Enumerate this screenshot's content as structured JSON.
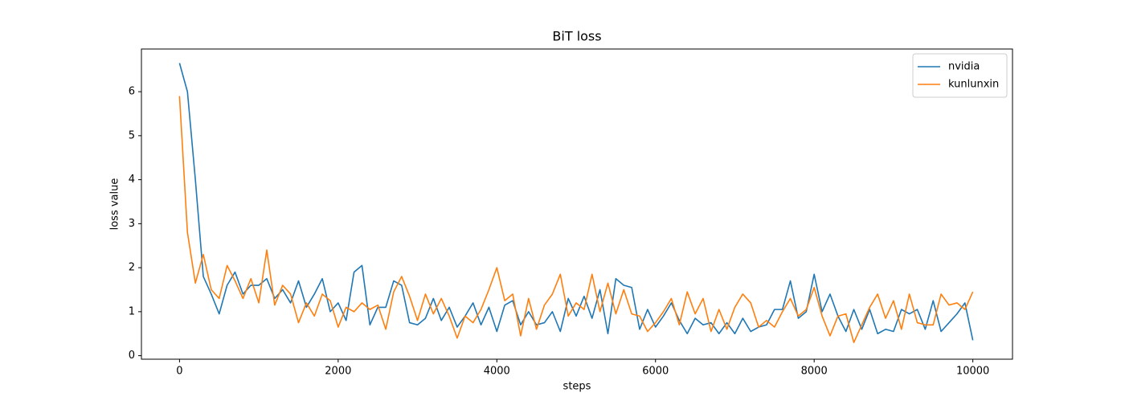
{
  "chart_data": {
    "type": "line",
    "title": "BiT loss",
    "x_label": "steps",
    "y_label": "loss value",
    "x": [
      0,
      100,
      200,
      300,
      400,
      500,
      600,
      700,
      800,
      900,
      1000,
      1100,
      1200,
      1300,
      1400,
      1500,
      1600,
      1700,
      1800,
      1900,
      2000,
      2100,
      2200,
      2300,
      2400,
      2500,
      2600,
      2700,
      2800,
      2900,
      3000,
      3100,
      3200,
      3300,
      3400,
      3500,
      3600,
      3700,
      3800,
      3900,
      4000,
      4100,
      4200,
      4300,
      4400,
      4500,
      4600,
      4700,
      4800,
      4900,
      5000,
      5100,
      5200,
      5300,
      5400,
      5500,
      5600,
      5700,
      5800,
      5900,
      6000,
      6100,
      6200,
      6300,
      6400,
      6500,
      6600,
      6700,
      6800,
      6900,
      7000,
      7100,
      7200,
      7300,
      7400,
      7500,
      7600,
      7700,
      7800,
      7900,
      8000,
      8100,
      8200,
      8300,
      8400,
      8500,
      8600,
      8700,
      8800,
      8900,
      9000,
      9100,
      9200,
      9300,
      9400,
      9500,
      9600,
      9700,
      9800,
      9900,
      10000
    ],
    "series": [
      {
        "name": "nvidia",
        "color": "#1f77b4",
        "values": [
          6.65,
          6.0,
          4.0,
          1.8,
          1.4,
          0.95,
          1.6,
          1.9,
          1.4,
          1.6,
          1.6,
          1.75,
          1.3,
          1.5,
          1.2,
          1.7,
          1.1,
          1.4,
          1.75,
          1.0,
          1.2,
          0.8,
          1.9,
          2.05,
          0.7,
          1.1,
          1.1,
          1.7,
          1.6,
          0.75,
          0.7,
          0.85,
          1.3,
          0.8,
          1.1,
          0.65,
          0.9,
          1.2,
          0.7,
          1.1,
          0.55,
          1.15,
          1.25,
          0.7,
          1.0,
          0.7,
          0.75,
          1.0,
          0.55,
          1.3,
          0.9,
          1.35,
          0.85,
          1.5,
          0.5,
          1.75,
          1.6,
          1.55,
          0.6,
          1.05,
          0.65,
          0.9,
          1.2,
          0.8,
          0.5,
          0.85,
          0.7,
          0.75,
          0.5,
          0.75,
          0.5,
          0.85,
          0.55,
          0.65,
          0.7,
          1.05,
          1.05,
          1.7,
          0.85,
          1.0,
          1.85,
          1.0,
          1.4,
          0.9,
          0.55,
          1.05,
          0.6,
          1.05,
          0.5,
          0.6,
          0.55,
          1.05,
          0.95,
          1.05,
          0.6,
          1.25,
          0.55,
          0.75,
          0.95,
          1.2,
          0.35
        ]
      },
      {
        "name": "kunlunxin",
        "color": "#ff7f0e",
        "values": [
          5.9,
          2.8,
          1.65,
          2.3,
          1.5,
          1.3,
          2.05,
          1.7,
          1.3,
          1.75,
          1.2,
          2.4,
          1.15,
          1.6,
          1.4,
          0.75,
          1.2,
          0.9,
          1.4,
          1.25,
          0.65,
          1.1,
          1.0,
          1.2,
          1.05,
          1.15,
          0.6,
          1.45,
          1.8,
          1.35,
          0.8,
          1.4,
          0.95,
          1.3,
          0.9,
          0.4,
          0.9,
          0.75,
          1.05,
          1.5,
          2.0,
          1.25,
          1.4,
          0.45,
          1.3,
          0.6,
          1.15,
          1.4,
          1.85,
          0.9,
          1.2,
          1.05,
          1.85,
          1.0,
          1.65,
          0.95,
          1.5,
          0.95,
          0.9,
          0.55,
          0.75,
          1.0,
          1.3,
          0.7,
          1.45,
          0.95,
          1.3,
          0.55,
          1.05,
          0.6,
          1.1,
          1.4,
          1.2,
          0.65,
          0.8,
          0.65,
          1.0,
          1.3,
          0.9,
          1.05,
          1.55,
          0.9,
          0.45,
          0.9,
          0.95,
          0.3,
          0.7,
          1.1,
          1.4,
          0.85,
          1.25,
          0.6,
          1.4,
          0.75,
          0.7,
          0.7,
          1.4,
          1.15,
          1.2,
          1.05,
          1.45
        ]
      }
    ],
    "xlim": [
      -480,
      10500
    ],
    "ylim": [
      -0.08,
      6.97
    ],
    "xticks": [
      0,
      2000,
      4000,
      6000,
      8000,
      10000
    ],
    "yticks": [
      0,
      1,
      2,
      3,
      4,
      5,
      6
    ],
    "legend": "upper right"
  }
}
